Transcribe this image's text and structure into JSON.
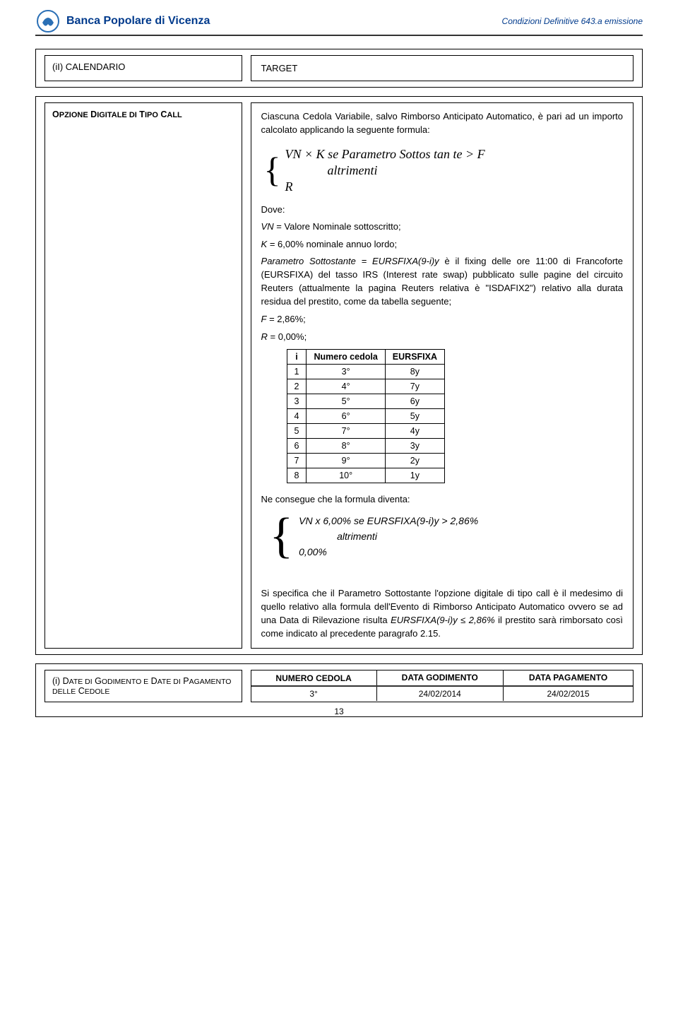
{
  "header": {
    "logo_text": "Banca Popolare di Vicenza",
    "doc_ref": "Condizioni Definitive 643.a emissione"
  },
  "box_calendario": {
    "left_label": "(iI) CALENDARIO",
    "right_label": "TARGET"
  },
  "main_box": {
    "left_title_html": "OPZIONE DIGITALE DI TIPO CALL",
    "intro": "Ciascuna Cedola Variabile, salvo Rimborso Anticipato Automatico, è pari ad un importo calcolato applicando la seguente formula:",
    "formula1_line1": "VN × K  se Parametro Sottos tan te > F",
    "formula1_line2": "altrimenti",
    "formula1_line3": "R",
    "dove": "Dove:",
    "def_vn": "VN = Valore Nominale sottoscritto;",
    "def_k": "K = 6,00% nominale annuo lordo;",
    "def_param": "Parametro Sottostante = EURSFIXA(9-i)y è il fixing delle ore 11:00 di Francoforte (EURSFIXA) del tasso IRS (Interest rate swap) pubblicato sulle pagine del circuito Reuters (attualmente la pagina Reuters relativa è \"ISDAFIX2\") relativo alla durata residua del prestito, come da tabella seguente;",
    "def_f": "F = 2,86%;",
    "def_r": "R = 0,00%;",
    "table": {
      "headers": [
        "i",
        "Numero cedola",
        "EURSFIXA"
      ],
      "rows": [
        [
          "1",
          "3°",
          "8y"
        ],
        [
          "2",
          "4°",
          "7y"
        ],
        [
          "3",
          "5°",
          "6y"
        ],
        [
          "4",
          "6°",
          "5y"
        ],
        [
          "5",
          "7°",
          "4y"
        ],
        [
          "6",
          "8°",
          "3y"
        ],
        [
          "7",
          "9°",
          "2y"
        ],
        [
          "8",
          "10°",
          "1y"
        ]
      ]
    },
    "consegue": "Ne consegue che la formula diventa:",
    "formula2_line1": "VN x 6,00% se EURSFIXA(9-i)y > 2,86%",
    "formula2_line2": "altrimenti",
    "formula2_line3": "0,00%",
    "note_text": "Si specifica che il Parametro Sottostante l'opzione digitale di tipo call è il medesimo di quello relativo alla formula dell'Evento di Rimborso Anticipato Automatico ovvero se ad una Data di Rilevazione risulta EURSFIXA(9-i)y ≤ 2,86% il prestito sarà rimborsato così come indicato al precedente paragrafo 2.15."
  },
  "bottom_box": {
    "left_text": "(i) DATE DI GODIMENTO E DATE DI PAGAMENTO DELLE CEDOLE",
    "headers": [
      "NUMERO CEDOLA",
      "DATA GODIMENTO",
      "DATA PAGAMENTO"
    ],
    "row": [
      "3°",
      "24/02/2014",
      "24/02/2015"
    ]
  },
  "page_number": "13"
}
